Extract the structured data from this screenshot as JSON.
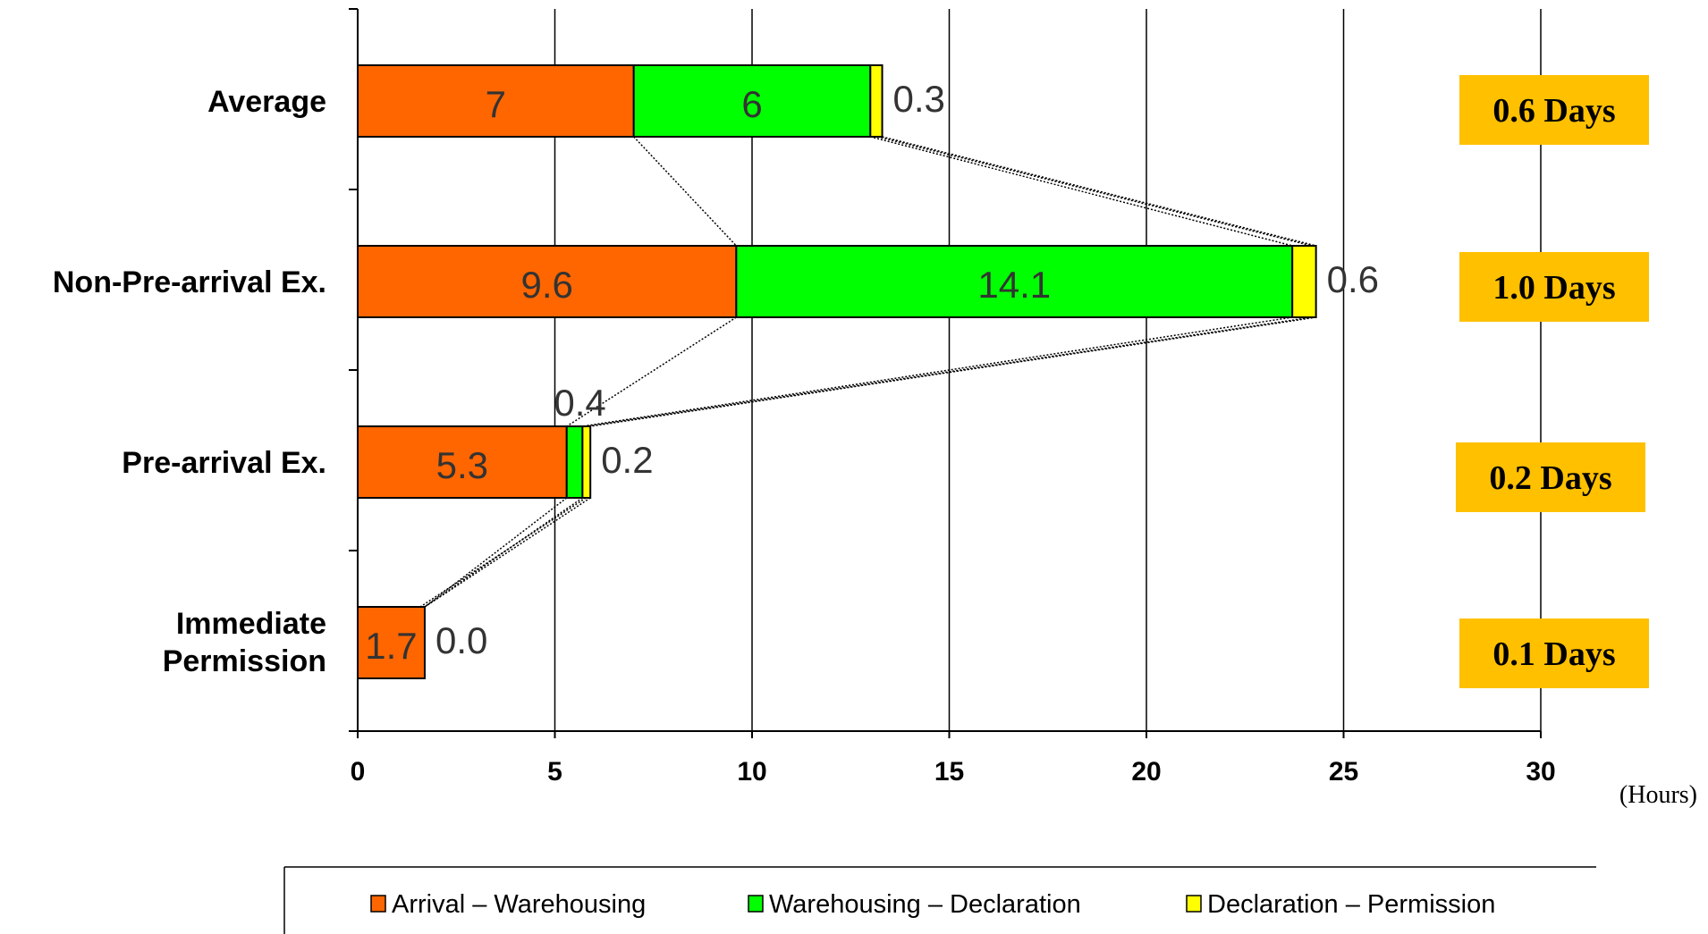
{
  "chart_data": {
    "type": "bar",
    "orientation": "horizontal",
    "stacked": true,
    "categories": [
      "Average",
      "Non-Pre-arrival Ex.",
      "Pre-arrival Ex.",
      "Immediate Permission"
    ],
    "series": [
      {
        "name": "Arrival – Warehousing",
        "color": "#ff6600",
        "values": [
          7,
          9.6,
          5.3,
          1.7
        ],
        "labels": [
          "7",
          "9.6",
          "5.3",
          "1.7"
        ]
      },
      {
        "name": "Warehousing – Declaration",
        "color": "#00ff00",
        "values": [
          6,
          14.1,
          0.4,
          0
        ],
        "labels": [
          "6",
          "14.1",
          "0.4",
          ""
        ]
      },
      {
        "name": "Declaration – Permission",
        "color": "#ffff00",
        "values": [
          0.3,
          0.6,
          0.2,
          0.0
        ],
        "labels": [
          "0.3",
          "0.6",
          "0.2",
          "0.0"
        ]
      }
    ],
    "xlim": [
      0,
      30
    ],
    "xticks": [
      "0",
      "5",
      "10",
      "15",
      "20",
      "25",
      "30"
    ],
    "xunit": "(Hours)",
    "grid": true,
    "legend_position": "bottom",
    "days": [
      "0.6 Days",
      "1.0 Days",
      "0.2 Days",
      "0.1 Days"
    ],
    "days_color": "#ffc000"
  }
}
